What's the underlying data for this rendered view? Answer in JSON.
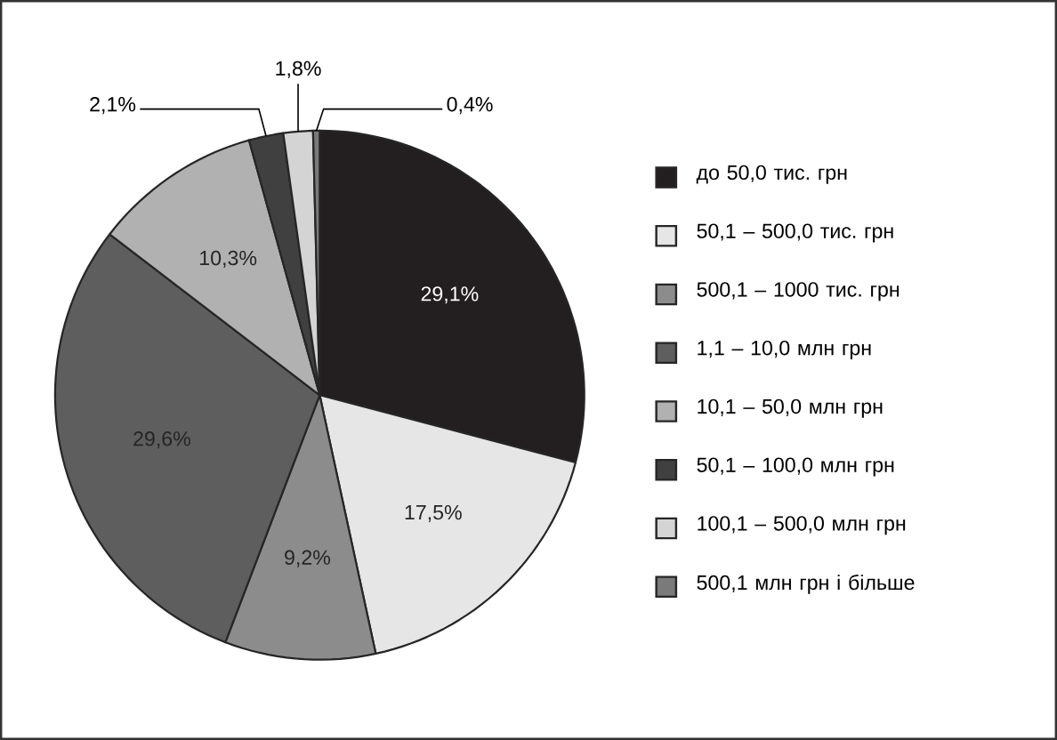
{
  "chart_data": {
    "type": "pie",
    "categories": [
      "до 50,0 тис. грн",
      "50,1 – 500,0 тис. грн",
      "500,1 – 1000 тис. грн",
      "1,1 – 10,0 млн грн",
      "10,1 – 50,0 млн грн",
      "50,1 – 100,0 млн грн",
      "100,1 – 500,0 млн грн",
      "500,1 млн грн і більше"
    ],
    "values": [
      29.1,
      17.5,
      9.2,
      29.6,
      10.3,
      2.1,
      1.8,
      0.4
    ],
    "value_labels": [
      "29,1%",
      "17,5%",
      "9,2%",
      "29,6%",
      "10,3%",
      "2,1%",
      "1,8%",
      "0,4%"
    ],
    "colors": [
      "#231f20",
      "#e6e6e6",
      "#8c8c8c",
      "#5e5e5e",
      "#b1b1b1",
      "#404040",
      "#d4d4d4",
      "#7a7a7a"
    ],
    "legend": "right"
  }
}
